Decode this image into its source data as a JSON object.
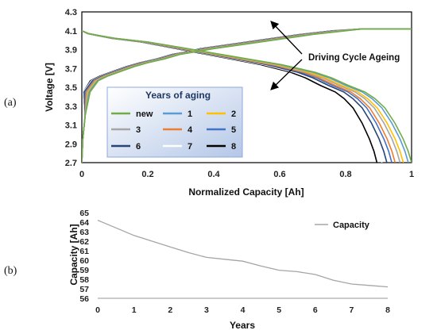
{
  "panel_labels": [
    "(a)",
    "(b)"
  ],
  "chart_data": [
    {
      "type": "line",
      "panel": "(a)",
      "title": "",
      "xlabel": "Normalized Capacity [Ah]",
      "ylabel": "Voltage [V]",
      "xlim": [
        0,
        1
      ],
      "ylim": [
        2.7,
        4.3
      ],
      "x_ticks": [
        0,
        0.2,
        0.4,
        0.6,
        0.8,
        1
      ],
      "x_tick_labels": [
        "0",
        "0.2",
        "0.4",
        "0.6",
        "0.8",
        "1"
      ],
      "y_ticks": [
        2.7,
        2.9,
        3.1,
        3.3,
        3.5,
        3.7,
        3.9,
        4.1,
        4.3
      ],
      "y_tick_labels": [
        "2.7",
        "2.9",
        "3.1",
        "3.3",
        "3.5",
        "3.7",
        "3.9",
        "4.1",
        "4.3"
      ],
      "grid": false,
      "annotation": "Driving Cycle Ageing",
      "legend": {
        "title": "Years of aging",
        "placement": "lower-left",
        "entries": [
          {
            "name": "new",
            "color": "#70ad47"
          },
          {
            "name": "1",
            "color": "#5b9bd5"
          },
          {
            "name": "2",
            "color": "#ffc000"
          },
          {
            "name": "3",
            "color": "#a5a5a5"
          },
          {
            "name": "4",
            "color": "#ed7d31"
          },
          {
            "name": "5",
            "color": "#4472c4"
          },
          {
            "name": "6",
            "color": "#264478"
          },
          {
            "name": "7",
            "color": "#ffffff"
          },
          {
            "name": "8",
            "color": "#000000"
          }
        ]
      },
      "charge_curve_points": [
        [
          0,
          2.7
        ],
        [
          0.003,
          2.95
        ],
        [
          0.01,
          3.2
        ],
        [
          0.025,
          3.45
        ],
        [
          0.05,
          3.57
        ],
        [
          0.08,
          3.62
        ],
        [
          0.12,
          3.67
        ],
        [
          0.16,
          3.72
        ],
        [
          0.2,
          3.76
        ],
        [
          0.25,
          3.8
        ],
        [
          0.3,
          3.85
        ],
        [
          0.35,
          3.88
        ],
        [
          0.4,
          3.91
        ],
        [
          0.5,
          3.96
        ],
        [
          0.6,
          4.01
        ],
        [
          0.7,
          4.06
        ],
        [
          0.8,
          4.1
        ],
        [
          0.85,
          4.12
        ],
        [
          1.0,
          4.12
        ]
      ],
      "discharge_curve_points": [
        [
          0,
          4.1
        ],
        [
          0.02,
          4.07
        ],
        [
          0.05,
          4.05
        ],
        [
          0.1,
          4.02
        ],
        [
          0.2,
          3.98
        ],
        [
          0.3,
          3.92
        ],
        [
          0.4,
          3.86
        ],
        [
          0.5,
          3.8
        ],
        [
          0.6,
          3.74
        ],
        [
          0.7,
          3.66
        ],
        [
          0.75,
          3.6
        ],
        [
          0.8,
          3.52
        ],
        [
          0.85,
          3.45
        ],
        [
          0.88,
          3.38
        ],
        [
          0.91,
          3.28
        ],
        [
          0.94,
          3.12
        ],
        [
          0.965,
          2.95
        ],
        [
          0.98,
          2.82
        ],
        [
          0.99,
          2.7
        ]
      ],
      "series": [
        {
          "name": "new",
          "capacity_end": 1.0,
          "charge_shift": 0.0
        },
        {
          "name": "1",
          "capacity_end": 0.99,
          "charge_shift": -0.005
        },
        {
          "name": "2",
          "capacity_end": 0.975,
          "charge_shift": -0.01
        },
        {
          "name": "3",
          "capacity_end": 0.965,
          "charge_shift": -0.015
        },
        {
          "name": "4",
          "capacity_end": 0.95,
          "charge_shift": -0.02
        },
        {
          "name": "5",
          "capacity_end": 0.94,
          "charge_shift": -0.025
        },
        {
          "name": "6",
          "capacity_end": 0.925,
          "charge_shift": -0.03
        },
        {
          "name": "7",
          "capacity_end": 0.91,
          "charge_shift": -0.035
        },
        {
          "name": "8",
          "capacity_end": 0.895,
          "charge_shift": -0.04
        }
      ]
    },
    {
      "type": "line",
      "panel": "(b)",
      "title": "",
      "xlabel": "Years",
      "ylabel": "Capacity [Ah]",
      "xlim": [
        0,
        8
      ],
      "ylim": [
        56,
        65
      ],
      "x_ticks": [
        0,
        1,
        2,
        3,
        4,
        5,
        6,
        7,
        8
      ],
      "y_ticks": [
        56,
        57,
        58,
        59,
        60,
        61,
        62,
        63,
        64,
        65
      ],
      "grid": false,
      "legend": {
        "placement": "top-right",
        "entries": [
          {
            "name": "Capacity",
            "color": "#a5a5a5"
          }
        ]
      },
      "series": [
        {
          "name": "Capacity",
          "color": "#a5a5a5",
          "x": [
            0,
            0.5,
            1,
            1.5,
            2,
            2.5,
            3,
            3.5,
            4,
            4.5,
            5,
            5.5,
            6,
            6.5,
            7,
            7.5,
            8
          ],
          "values": [
            64.2,
            63.4,
            62.6,
            62.0,
            61.4,
            60.8,
            60.3,
            60.1,
            59.9,
            59.4,
            58.95,
            58.8,
            58.5,
            57.9,
            57.5,
            57.35,
            57.2
          ]
        }
      ]
    }
  ]
}
